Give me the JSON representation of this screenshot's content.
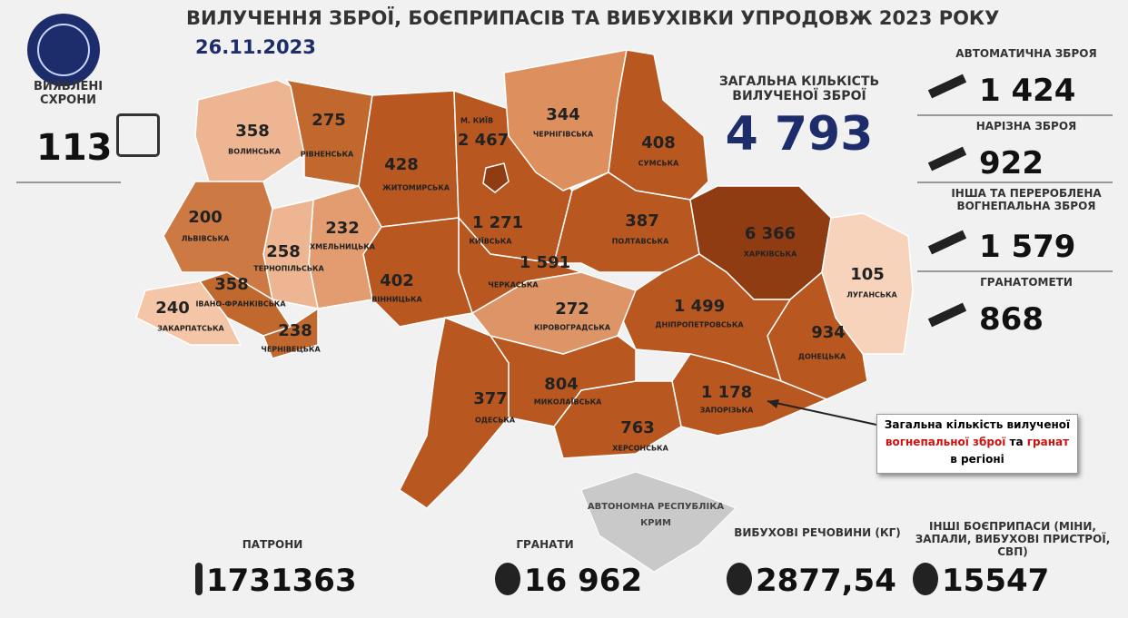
{
  "header": {
    "title": "ВИЛУЧЕННЯ ЗБРОЇ, БОЄПРИПАСІВ ТА ВИБУХІВКИ УПРОДОВЖ 2023 РОКУ",
    "date": "26.11.2023"
  },
  "caches": {
    "label": "ВИЯВЛЕНІ СХРОНИ",
    "value": "113"
  },
  "total": {
    "label": "ЗАГАЛЬНА КІЛЬКІСТЬ ВИЛУЧЕНОЇ ЗБРОЇ",
    "value": "4 793"
  },
  "weapons": [
    {
      "label": "АВТОМАТИЧНА ЗБРОЯ",
      "value": "1 424"
    },
    {
      "label": "НАРІЗНА ЗБРОЯ",
      "value": "922"
    },
    {
      "label": "ІНША ТА ПЕРЕРОБЛЕНА ВОГНЕПАЛЬНА ЗБРОЯ",
      "value": "1 579"
    },
    {
      "label": "ГРАНАТОМЕТИ",
      "value": "868"
    }
  ],
  "regions": [
    {
      "name": "ВОЛИНСЬКА",
      "value": "358",
      "color": "#eeb592"
    },
    {
      "name": "РІВНЕНСЬКА",
      "value": "275",
      "color": "#c1682f"
    },
    {
      "name": "ЖИТОМИРСЬКА",
      "value": "428",
      "color": "#b8571f"
    },
    {
      "name": "КИЇВСЬКА",
      "value": "1 271",
      "color": "#b8571f"
    },
    {
      "name": "ЧЕРНІГІВСЬКА",
      "value": "344",
      "color": "#de8f5e"
    },
    {
      "name": "СУМСЬКА",
      "value": "408",
      "color": "#b8571f"
    },
    {
      "name": "ПОЛТАВСЬКА",
      "value": "387",
      "color": "#b8571f"
    },
    {
      "name": "ХАРКІВСЬКА",
      "value": "6 366",
      "color": "#8f3c12"
    },
    {
      "name": "ЛУГАНСЬКА",
      "value": "105",
      "color": "#f8d3bb"
    },
    {
      "name": "ДОНЕЦЬКА",
      "value": "934",
      "color": "#b8571f"
    },
    {
      "name": "ДНІПРОПЕТРОВСЬКА",
      "value": "1 499",
      "color": "#b8571f"
    },
    {
      "name": "ЗАПОРІЗЬКА",
      "value": "1 178",
      "color": "#b8571f"
    },
    {
      "name": "ХЕРСОНСЬКА",
      "value": "763",
      "color": "#b8571f"
    },
    {
      "name": "МИКОЛАЇВСЬКА",
      "value": "804",
      "color": "#b8571f"
    },
    {
      "name": "ОДЕСЬКА",
      "value": "377",
      "color": "#b8571f"
    },
    {
      "name": "КІРОВОГРАДСЬКА",
      "value": "272",
      "color": "#dd9467"
    },
    {
      "name": "ЧЕРКАСЬКА",
      "value": "1 591",
      "color": "#b8571f"
    },
    {
      "name": "ВІННИЦЬКА",
      "value": "402",
      "color": "#b8571f"
    },
    {
      "name": "ХМЕЛЬНИЦЬКА",
      "value": "232",
      "color": "#e29c70"
    },
    {
      "name": "ТЕРНОПІЛЬСЬКА",
      "value": "258",
      "color": "#eeb592"
    },
    {
      "name": "ЛЬВІВСЬКА",
      "value": "200",
      "color": "#cd7944"
    },
    {
      "name": "ІВАНО-ФРАНКІВСЬКА",
      "value": "358",
      "color": "#c1682f"
    },
    {
      "name": "ЗАКАРПАТСЬКА",
      "value": "240",
      "color": "#f4c5a6"
    },
    {
      "name": "ЧЕРНІВЕЦЬКА",
      "value": "238",
      "color": "#c1682f"
    },
    {
      "name": "М. КИЇВ",
      "value": "2 467",
      "color": "#8f3c12"
    }
  ],
  "crimea": [
    "АВТОНОМНА РЕСПУБЛІКА",
    "КРИМ"
  ],
  "callout": {
    "line1": "Загальна кількість вилученої",
    "red1": "вогнепальної зброї",
    "mid": "та",
    "red2": "гранат",
    "line3": "в регіоні"
  },
  "ammo": [
    {
      "label": "ПАТРОНИ",
      "value": "1731363"
    },
    {
      "label": "ГРАНАТИ",
      "value": "16 962"
    },
    {
      "label": "ВИБУХОВІ РЕЧОВИНИ (КГ)",
      "value": "2877,54"
    },
    {
      "label": "ІНШІ БОЄПРИПАСИ (МІНИ, ЗАПАЛИ, ВИБУХОВІ ПРИСТРОЇ, СВП)",
      "value": "15547"
    }
  ]
}
